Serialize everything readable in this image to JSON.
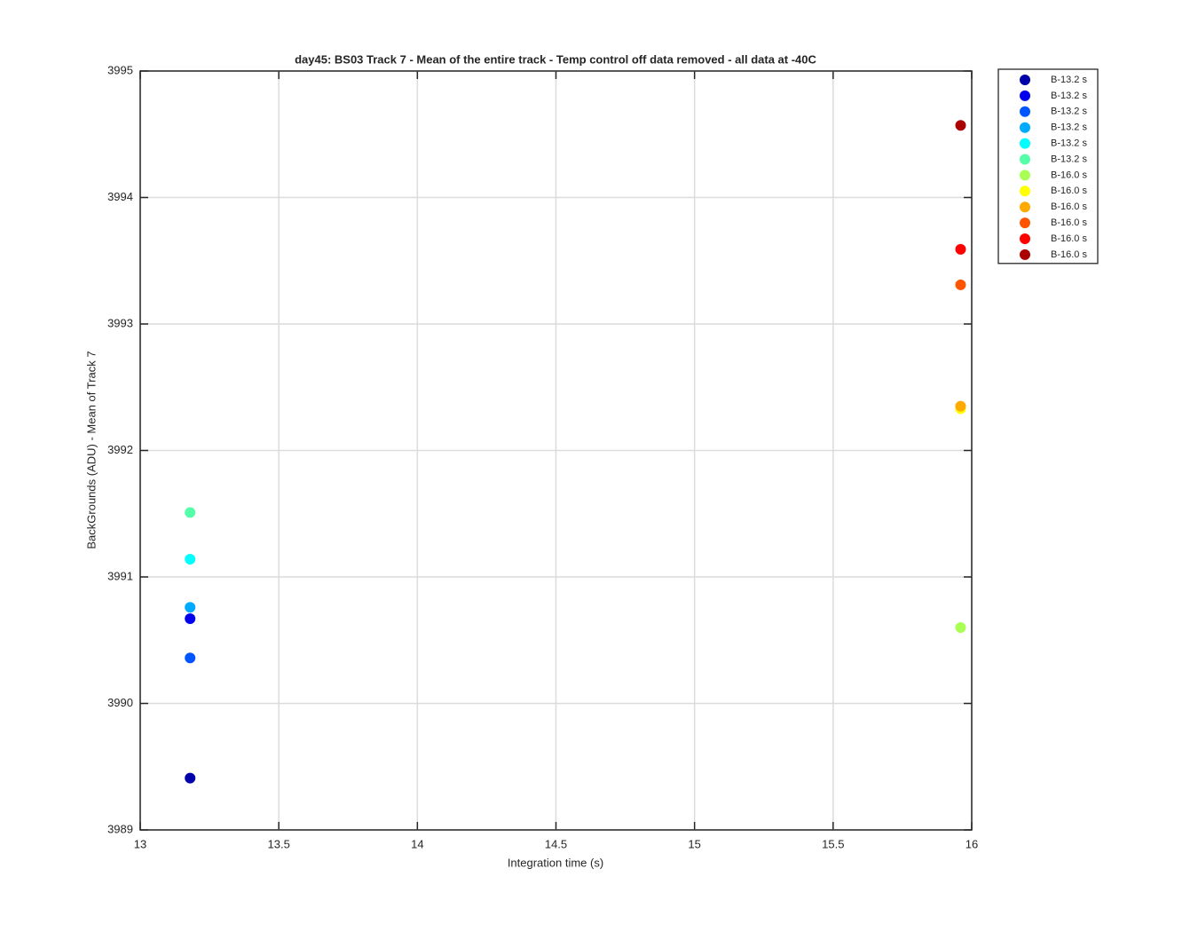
{
  "chart_data": {
    "type": "scatter",
    "title": "day45: BS03  Track 7 - Mean of the entire track - Temp control off data removed - all data at -40C",
    "xlabel": "Integration time (s)",
    "ylabel": "BackGrounds (ADU) - Mean of Track 7",
    "xlim": [
      13,
      16
    ],
    "xticks": [
      13,
      13.5,
      14,
      14.5,
      15,
      15.5,
      16
    ],
    "ylim": [
      3989,
      3995
    ],
    "yticks": [
      3989,
      3990,
      3991,
      3992,
      3993,
      3994,
      3995
    ],
    "grid": true,
    "legend_position": "northeastoutside",
    "series": [
      {
        "name": "B-13.2 s",
        "color": "#0000aa",
        "x": [
          13.18
        ],
        "values": [
          3989.41
        ]
      },
      {
        "name": "B-13.2 s",
        "color": "#0000ee",
        "x": [
          13.18
        ],
        "values": [
          3990.67
        ]
      },
      {
        "name": "B-13.2 s",
        "color": "#0055ff",
        "x": [
          13.18
        ],
        "values": [
          3990.36
        ]
      },
      {
        "name": "B-13.2 s",
        "color": "#00aaff",
        "x": [
          13.18
        ],
        "values": [
          3990.76
        ]
      },
      {
        "name": "B-13.2 s",
        "color": "#00ffff",
        "x": [
          13.18
        ],
        "values": [
          3991.14
        ]
      },
      {
        "name": "B-13.2 s",
        "color": "#55ffaa",
        "x": [
          13.18
        ],
        "values": [
          3991.51
        ]
      },
      {
        "name": "B-16.0 s",
        "color": "#aaff55",
        "x": [
          15.96
        ],
        "values": [
          3990.6
        ]
      },
      {
        "name": "B-16.0 s",
        "color": "#ffff00",
        "x": [
          15.96
        ],
        "values": [
          3992.33
        ]
      },
      {
        "name": "B-16.0 s",
        "color": "#ffaa00",
        "x": [
          15.96
        ],
        "values": [
          3992.35
        ]
      },
      {
        "name": "B-16.0 s",
        "color": "#ff5500",
        "x": [
          15.96
        ],
        "values": [
          3993.31
        ]
      },
      {
        "name": "B-16.0 s",
        "color": "#ff0000",
        "x": [
          15.96
        ],
        "values": [
          3993.59
        ]
      },
      {
        "name": "B-16.0 s",
        "color": "#aa0000",
        "x": [
          15.96
        ],
        "values": [
          3994.57
        ]
      }
    ]
  }
}
